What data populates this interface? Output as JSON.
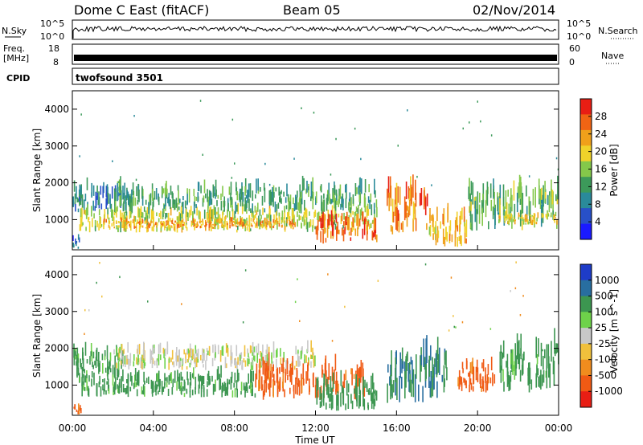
{
  "header": {
    "title": "Dome C East (fitACF)",
    "beam": "Beam 05",
    "date": "02/Nov/2014"
  },
  "strip_labels": {
    "nsky": "N.Sky",
    "nsearch": "N.Search",
    "freq_line1": "Freq.",
    "freq_line2": "[MHz]",
    "nave": "Nave",
    "cpid": "CPID",
    "cpid_value": "twofsound 3501",
    "nsky_ticks": [
      "10^5",
      "10^0"
    ],
    "nsearch_ticks": [
      "10^5",
      "10^0"
    ],
    "freq_ticks": [
      "18",
      "8"
    ],
    "nave_ticks": [
      "60",
      "0"
    ]
  },
  "colors": {
    "power_scale": [
      "#1a1aff",
      "#2850c8",
      "#2a8a9a",
      "#3c9a5a",
      "#84c84a",
      "#f0d22a",
      "#f0a01a",
      "#f06414",
      "#e81e14"
    ],
    "velocity_scale": [
      "#e81e14",
      "#f05a14",
      "#f08c1e",
      "#f0c03c",
      "#c8c8c8",
      "#6ed24a",
      "#3c9650",
      "#286ea0",
      "#1e3cc8"
    ]
  },
  "chart_data": [
    {
      "type": "heatmap",
      "title": "",
      "xlabel": "",
      "ylabel": "Slant Range [km]",
      "xlim": [
        0,
        24
      ],
      "ylim": [
        180,
        4500
      ],
      "x_ticks": [
        "00:00",
        "04:00",
        "08:00",
        "12:00",
        "16:00",
        "20:00",
        "00:00"
      ],
      "y_ticks": [
        "1000",
        "2000",
        "3000",
        "4000"
      ],
      "colorbar": {
        "label": "Power [dB]",
        "ticks": [
          "4",
          "8",
          "12",
          "16",
          "20",
          "24",
          "28"
        ],
        "range": [
          0,
          32
        ]
      },
      "bands": [
        {
          "x0": 0.0,
          "x1": 0.4,
          "y0": 200,
          "y1": 450,
          "value": 6
        },
        {
          "x0": 0.0,
          "x1": 2.5,
          "y0": 1200,
          "y1": 1800,
          "value": 8
        },
        {
          "x0": 0.3,
          "x1": 15.0,
          "y0": 650,
          "y1": 1150,
          "value": 18
        },
        {
          "x0": 1.5,
          "x1": 11.0,
          "y0": 750,
          "y1": 950,
          "value": 24
        },
        {
          "x0": 12.0,
          "x1": 15.0,
          "y0": 350,
          "y1": 1000,
          "value": 28
        },
        {
          "x0": 2.0,
          "x1": 15.0,
          "y0": 1150,
          "y1": 1800,
          "value": 12
        },
        {
          "x0": 15.5,
          "x1": 17.5,
          "y0": 600,
          "y1": 1600,
          "value": 26
        },
        {
          "x0": 17.5,
          "x1": 19.5,
          "y0": 250,
          "y1": 1000,
          "value": 22
        },
        {
          "x0": 19.5,
          "x1": 24.0,
          "y0": 700,
          "y1": 1700,
          "value": 14
        },
        {
          "x0": 21.0,
          "x1": 24.0,
          "y0": 850,
          "y1": 1100,
          "value": 20
        }
      ]
    },
    {
      "type": "heatmap",
      "title": "",
      "xlabel": "Time UT",
      "ylabel": "Slant Range [km]",
      "xlim": [
        0,
        24
      ],
      "ylim": [
        180,
        4500
      ],
      "x_ticks": [
        "00:00",
        "04:00",
        "08:00",
        "12:00",
        "16:00",
        "20:00",
        "00:00"
      ],
      "y_ticks": [
        "1000",
        "2000",
        "3000",
        "4000"
      ],
      "colorbar": {
        "label": "Velocity [m s^-1]",
        "ticks": [
          "1000",
          "500",
          "100",
          "25",
          "-25",
          "-100",
          "-500",
          "-1000"
        ]
      },
      "bands": [
        {
          "x0": 0.0,
          "x1": 0.4,
          "y0": 200,
          "y1": 450,
          "value": -500
        },
        {
          "x0": 0.0,
          "x1": 2.5,
          "y0": 1200,
          "y1": 1800,
          "value": 100
        },
        {
          "x0": 0.3,
          "x1": 9.0,
          "y0": 650,
          "y1": 1200,
          "value": 100
        },
        {
          "x0": 2.0,
          "x1": 12.0,
          "y0": 1400,
          "y1": 1900,
          "value": 0
        },
        {
          "x0": 9.0,
          "x1": 14.5,
          "y0": 600,
          "y1": 1400,
          "value": -500
        },
        {
          "x0": 12.0,
          "x1": 15.0,
          "y0": 300,
          "y1": 1000,
          "value": 200
        },
        {
          "x0": 15.5,
          "x1": 18.5,
          "y0": 500,
          "y1": 1700,
          "value": 300
        },
        {
          "x0": 19.0,
          "x1": 21.0,
          "y0": 800,
          "y1": 1500,
          "value": -500
        },
        {
          "x0": 21.0,
          "x1": 24.0,
          "y0": 800,
          "y1": 1900,
          "value": 100
        }
      ]
    }
  ]
}
